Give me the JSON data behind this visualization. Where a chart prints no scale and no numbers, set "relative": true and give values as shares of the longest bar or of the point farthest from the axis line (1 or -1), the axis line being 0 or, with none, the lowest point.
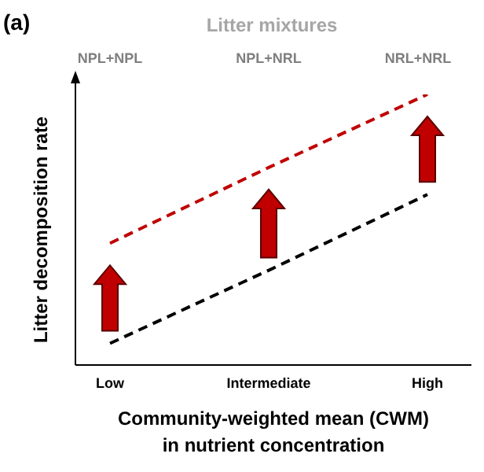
{
  "chart_data": {
    "type": "line",
    "title": "(a)",
    "subtitle": "Litter mixtures",
    "annotations": [
      "NPL+NPL",
      "NPL+NRL",
      "NRL+NRL"
    ],
    "xlabel": "Community-weighted mean (CWM)\nin nutrient concentration",
    "ylabel": "Litter decomposition rate",
    "categories": [
      "Low",
      "Intermediate",
      "High"
    ],
    "relative": true,
    "line_style": "dashed",
    "marker": "none",
    "grid": false,
    "legend": false,
    "series": [
      {
        "color": "#c00000",
        "values": [
          0.45,
          0.73,
          1
        ]
      },
      {
        "color": "#000000",
        "values": [
          0.08,
          0.35,
          0.63
        ]
      }
    ]
  }
}
